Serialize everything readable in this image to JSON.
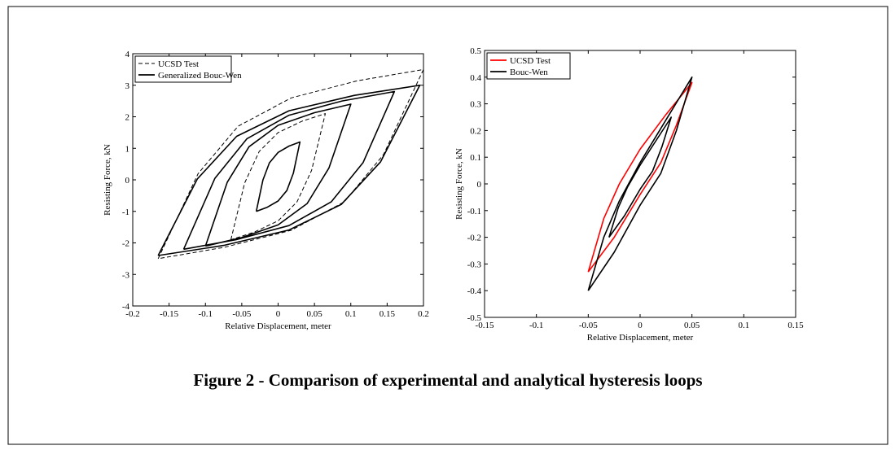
{
  "chart_data": [
    {
      "type": "line",
      "xlabel": "Relative Displacement, meter",
      "ylabel": "Resisting Force, kN",
      "xlim": [
        -0.2,
        0.2
      ],
      "xticks": [
        -0.2,
        -0.15,
        -0.1,
        -0.05,
        0,
        0.05,
        0.1,
        0.15,
        0.2
      ],
      "ylim": [
        -4,
        4
      ],
      "yticks": [
        -4,
        -3,
        -2,
        -1,
        0,
        1,
        2,
        3,
        4
      ],
      "legend": "upper left",
      "series": [
        {
          "name": "UCSD Test",
          "color": "#000000",
          "line_style": "dashed",
          "x": [
            -0.065,
            -0.046,
            -0.026,
            0,
            0.033,
            0.065,
            0.046,
            0.026,
            0,
            -0.033,
            -0.065,
            null,
            -0.165,
            -0.11,
            -0.055,
            0.018,
            0.109,
            0.2,
            0.145,
            0.091,
            0.018,
            -0.074,
            -0.165
          ],
          "values": [
            -1.9,
            -0.1,
            0.9,
            1.5,
            1.86,
            2.1,
            0.3,
            -0.7,
            -1.3,
            -1.66,
            -1.9,
            null,
            -2.5,
            0.2,
            1.7,
            2.6,
            3.14,
            3.5,
            0.8,
            -0.7,
            -1.6,
            -2.14,
            -2.5
          ]
        },
        {
          "name": "Generalized Bouc-Wen",
          "color": "#000000",
          "line_style": "solid",
          "x": [
            -0.03,
            -0.021,
            -0.012,
            0,
            0.015,
            0.03,
            0.021,
            0.012,
            0,
            -0.015,
            -0.03,
            null,
            -0.1,
            -0.07,
            -0.04,
            0,
            0.05,
            0.1,
            0.07,
            0.04,
            0,
            -0.05,
            -0.1,
            null,
            -0.13,
            -0.087,
            -0.043,
            0.015,
            0.088,
            0.16,
            0.117,
            0.073,
            0.015,
            -0.058,
            -0.13,
            null,
            -0.165,
            -0.111,
            -0.057,
            0.015,
            0.105,
            0.195,
            0.141,
            0.087,
            0.015,
            -0.075,
            -0.165
          ],
          "values": [
            -1,
            -0.01,
            0.54,
            0.87,
            1.07,
            1.2,
            0.21,
            -0.34,
            -0.67,
            -0.87,
            -1,
            null,
            -2.1,
            -0.08,
            1.05,
            1.73,
            2.13,
            2.4,
            0.38,
            -0.75,
            -1.43,
            -1.83,
            -2.1,
            null,
            -2.2,
            0.05,
            1.3,
            2.05,
            2.5,
            2.8,
            0.55,
            -0.7,
            -1.45,
            -1.9,
            -2.2,
            null,
            -2.4,
            0.03,
            1.38,
            2.19,
            2.68,
            3,
            0.57,
            -0.78,
            -1.59,
            -2.08,
            -2.4
          ]
        }
      ]
    },
    {
      "type": "line",
      "xlabel": "Relative Displacement, meter",
      "ylabel": "Resisting Force, kN",
      "xlim": [
        -0.15,
        0.15
      ],
      "xticks": [
        -0.15,
        -0.1,
        -0.05,
        0,
        0.05,
        0.1,
        0.15
      ],
      "ylim": [
        -0.5,
        0.5
      ],
      "yticks": [
        -0.5,
        -0.4,
        -0.3,
        -0.2,
        -0.1,
        0,
        0.1,
        0.2,
        0.3,
        0.4,
        0.5
      ],
      "legend": "upper left",
      "series": [
        {
          "name": "UCSD Test",
          "color": "#ff0000",
          "line_style": "solid",
          "x": [
            -0.05,
            -0.035,
            -0.02,
            0,
            0.025,
            0.05,
            0.035,
            0.02,
            0,
            -0.025,
            -0.05
          ],
          "values": [
            -0.33,
            -0.13,
            0,
            0.13,
            0.26,
            0.38,
            0.22,
            0.08,
            -0.04,
            -0.2,
            -0.33
          ]
        },
        {
          "name": "Bouc-Wen",
          "color": "#000000",
          "line_style": "solid",
          "x": [
            -0.05,
            -0.035,
            -0.02,
            0,
            0.025,
            0.05,
            0.035,
            0.02,
            0,
            -0.025,
            -0.05,
            null,
            -0.03,
            -0.021,
            -0.012,
            0,
            0.015,
            0.03,
            0.021,
            0.012,
            0,
            -0.015,
            -0.03
          ],
          "values": [
            -0.4,
            -0.2,
            -0.064,
            0.08,
            0.24,
            0.4,
            0.2,
            0.04,
            -0.08,
            -0.256,
            -0.4,
            null,
            -0.2,
            -0.088,
            -0.011,
            0.07,
            0.16,
            0.25,
            0.138,
            0.048,
            -0.02,
            -0.119,
            -0.2
          ]
        }
      ]
    }
  ],
  "caption": "Figure 2 -  Comparison of experimental and analytical hysteresis loops"
}
